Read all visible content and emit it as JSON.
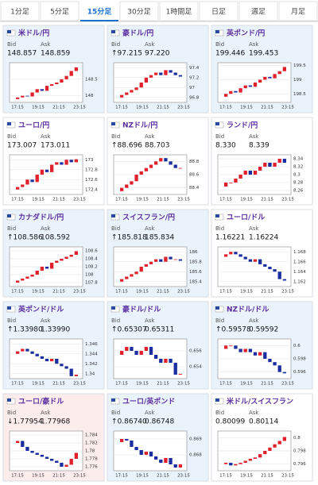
{
  "tabs": {
    "items": [
      "1分足",
      "5分足",
      "15分足",
      "30分足",
      "1時間足",
      "日足",
      "週足",
      "月足"
    ],
    "active": 2,
    "active_color": "#1a6fd0"
  },
  "bid_label": "Bid",
  "ask_label": "Ask",
  "xticks": [
    "17:15",
    "19:15",
    "21:15",
    "23:15"
  ],
  "up_color": "#e0202a",
  "down_color": "#1a2ea0",
  "cards": [
    {
      "name": "米ドル/円",
      "bid": "148.857",
      "ask": "148.859",
      "background": "#eaf3fb",
      "ylim": [
        147.8,
        149.0
      ],
      "yticks": [
        148.5,
        148
      ],
      "values": [
        147.9,
        147.95,
        148.0,
        147.98,
        148.1,
        148.2,
        148.15,
        148.3,
        148.35,
        148.4,
        148.5,
        148.6,
        148.75,
        148.86
      ]
    },
    {
      "name": "豪ドル/円",
      "bid": "↑97.215",
      "ask": "97.220",
      "background": "#eaf3fb",
      "ylim": [
        96.7,
        97.5
      ],
      "yticks": [
        97.4,
        97.2,
        97,
        96.8
      ],
      "values": [
        96.8,
        96.85,
        96.9,
        96.95,
        97.0,
        97.1,
        97.2,
        97.25,
        97.3,
        97.25,
        97.35,
        97.3,
        97.25,
        97.22
      ]
    },
    {
      "name": "英ポンド/円",
      "bid": "199.446",
      "ask": "199.453",
      "background": "#eaf3fb",
      "ylim": [
        198.2,
        199.6
      ],
      "yticks": [
        199.5,
        199,
        198.5
      ],
      "values": [
        198.4,
        198.5,
        198.6,
        198.55,
        198.7,
        198.8,
        198.75,
        198.9,
        199.0,
        199.1,
        199.05,
        199.2,
        199.3,
        199.45
      ]
    },
    {
      "name": "ユーロ/円",
      "bid": "173.007",
      "ask": "173.011",
      "background": "#ffffff",
      "ylim": [
        172.3,
        173.1
      ],
      "yticks": [
        173,
        172.8,
        172.6,
        172.4
      ],
      "values": [
        172.4,
        172.45,
        172.5,
        172.6,
        172.55,
        172.7,
        172.8,
        172.75,
        172.9,
        172.95,
        172.9,
        173.0,
        172.95,
        173.01
      ]
    },
    {
      "name": "NZドル/円",
      "bid": "↑88.696",
      "ask": "88.703",
      "background": "#ffffff",
      "ylim": [
        88.3,
        88.9
      ],
      "yticks": [
        88.8,
        88.6,
        88.4
      ],
      "values": [
        88.35,
        88.4,
        88.45,
        88.5,
        88.6,
        88.65,
        88.7,
        88.75,
        88.8,
        88.85,
        88.8,
        88.75,
        88.7,
        88.7
      ]
    },
    {
      "name": "ランド/円",
      "bid": "8.330",
      "ask": "8.339",
      "background": "#ffffff",
      "ylim": [
        8.25,
        8.35
      ],
      "yticks": [
        8.34,
        8.32,
        8.3,
        8.28,
        8.26
      ],
      "values": [
        8.27,
        8.28,
        8.28,
        8.29,
        8.3,
        8.31,
        8.3,
        8.31,
        8.32,
        8.33,
        8.32,
        8.33,
        8.34,
        8.33
      ]
    },
    {
      "name": "カナダドル/円",
      "bid": "↑108.586",
      "ask": "108.592",
      "background": "#eaf3fb",
      "ylim": [
        107.7,
        108.7
      ],
      "yticks": [
        108.6,
        108.4,
        108.2,
        108,
        107.8
      ],
      "values": [
        107.8,
        107.85,
        107.9,
        107.95,
        108.0,
        108.1,
        108.2,
        108.15,
        108.3,
        108.35,
        108.4,
        108.45,
        108.5,
        108.59
      ]
    },
    {
      "name": "スイスフラン/円",
      "bid": "↑185.818",
      "ask": "185.834",
      "background": "#eaf3fb",
      "ylim": [
        185.3,
        186.1
      ],
      "yticks": [
        186,
        185.8,
        185.6,
        185.4
      ],
      "values": [
        185.4,
        185.45,
        185.5,
        185.55,
        185.6,
        185.7,
        185.75,
        185.8,
        185.85,
        185.8,
        185.9,
        185.85,
        185.85,
        185.82
      ]
    },
    {
      "name": "ユーロ/ドル",
      "bid": "1.16221",
      "ask": "1.16224",
      "background": "#ffffff",
      "ylim": [
        1.161,
        1.169
      ],
      "yticks": [
        1.168,
        1.166,
        1.164,
        1.162
      ],
      "values": [
        1.167,
        1.1675,
        1.168,
        1.1675,
        1.167,
        1.1665,
        1.166,
        1.1665,
        1.1655,
        1.165,
        1.1645,
        1.164,
        1.1625,
        1.1622
      ]
    },
    {
      "name": "英ポンド/ドル",
      "bid": "↑1.33980",
      "ask": "1.33990",
      "background": "#eaf3fb",
      "ylim": [
        1.339,
        1.347
      ],
      "yticks": [
        1.346,
        1.344,
        1.342,
        1.34
      ],
      "values": [
        1.344,
        1.3445,
        1.345,
        1.3445,
        1.344,
        1.3435,
        1.343,
        1.3425,
        1.343,
        1.342,
        1.3415,
        1.341,
        1.3395,
        1.3398
      ]
    },
    {
      "name": "豪ドル/ドル",
      "bid": "↑0.65307",
      "ask": "0.65311",
      "background": "#eaf3fb",
      "ylim": [
        0.6525,
        0.6575
      ],
      "yticks": [
        0.656,
        0.654
      ],
      "values": [
        0.6555,
        0.656,
        0.6565,
        0.656,
        0.6555,
        0.656,
        0.6565,
        0.6555,
        0.655,
        0.6545,
        0.655,
        0.6545,
        0.653,
        0.6531
      ]
    },
    {
      "name": "NZドル/ドル",
      "bid": "↑0.59578",
      "ask": "0.59592",
      "background": "#eaf3fb",
      "ylim": [
        0.595,
        0.601
      ],
      "yticks": [
        0.6,
        0.598,
        0.596
      ],
      "values": [
        0.5995,
        0.6,
        0.6,
        0.5995,
        0.599,
        0.5995,
        0.599,
        0.5985,
        0.599,
        0.598,
        0.5975,
        0.597,
        0.596,
        0.5958
      ]
    },
    {
      "name": "ユーロ/豪ドル",
      "bid": "↓1.77954",
      "ask": "1.77968",
      "background": "#fdecec",
      "ylim": [
        1.775,
        1.785
      ],
      "yticks": [
        1.784,
        1.782,
        1.78,
        1.778,
        1.776
      ],
      "values": [
        1.782,
        1.7825,
        1.781,
        1.78,
        1.7795,
        1.779,
        1.7785,
        1.778,
        1.7775,
        1.777,
        1.776,
        1.7765,
        1.778,
        1.7795
      ]
    },
    {
      "name": "ユーロ/英ポンド",
      "bid": "↑0.86740",
      "ask": "0.86748",
      "background": "#eaf3fb",
      "ylim": [
        0.867,
        0.8695
      ],
      "yticks": [
        0.869,
        0.868
      ],
      "values": [
        0.8688,
        0.869,
        0.8689,
        0.8685,
        0.8683,
        0.868,
        0.8682,
        0.8679,
        0.8677,
        0.8675,
        0.8678,
        0.8674,
        0.8672,
        0.8674
      ]
    },
    {
      "name": "米ドル/スイスフラン",
      "bid": "0.80099",
      "ask": "0.80114",
      "background": "#ffffff",
      "ylim": [
        0.795,
        0.801
      ],
      "yticks": [
        0.8,
        0.798,
        0.796
      ],
      "values": [
        0.796,
        0.7962,
        0.7958,
        0.796,
        0.7962,
        0.7965,
        0.7968,
        0.797,
        0.7975,
        0.798,
        0.7985,
        0.799,
        0.7995,
        0.8001
      ]
    }
  ]
}
